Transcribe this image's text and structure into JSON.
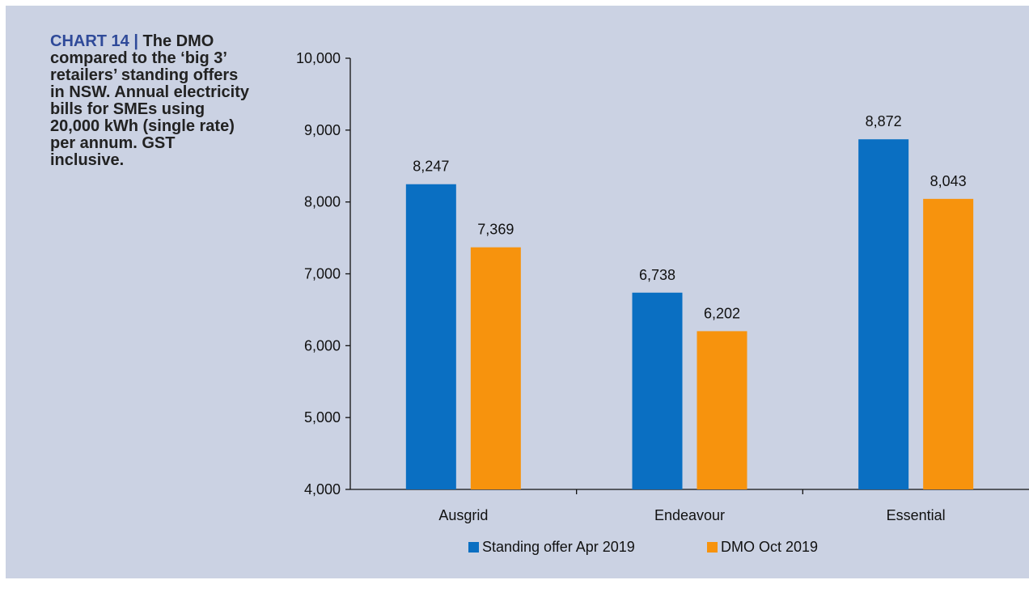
{
  "caption": {
    "label": "CHART 14",
    "separator": "|",
    "text": "The DMO compared to the ‘big 3’ retailers’ standing offers in NSW. Annual electricity bills for SMEs using 20,000 kWh (single rate) per annum. GST inclusive."
  },
  "colors": {
    "background": "#cbd2e3",
    "caption_label": "#2f4a99",
    "series_1": "#0a6fc2",
    "series_2": "#f7930d"
  },
  "chart_data": {
    "type": "bar",
    "categories": [
      "Ausgrid",
      "Endeavour",
      "Essential"
    ],
    "series": [
      {
        "name": "Standing offer Apr 2019",
        "color": "#0a6fc2",
        "values": [
          8247,
          6738,
          8872
        ],
        "labels": [
          "8,247",
          "6,738",
          "8,872"
        ]
      },
      {
        "name": "DMO Oct 2019",
        "color": "#f7930d",
        "values": [
          7369,
          6202,
          8043
        ],
        "labels": [
          "7,369",
          "6,202",
          "8,043"
        ]
      }
    ],
    "ylim": [
      4000,
      10000
    ],
    "yticks": [
      4000,
      5000,
      6000,
      7000,
      8000,
      9000,
      10000
    ],
    "ytick_labels": [
      "4,000",
      "5,000",
      "6,000",
      "7,000",
      "8,000",
      "9,000",
      "10,000"
    ],
    "xlabel": "",
    "ylabel": "",
    "grid": false,
    "legend_position": "bottom"
  }
}
